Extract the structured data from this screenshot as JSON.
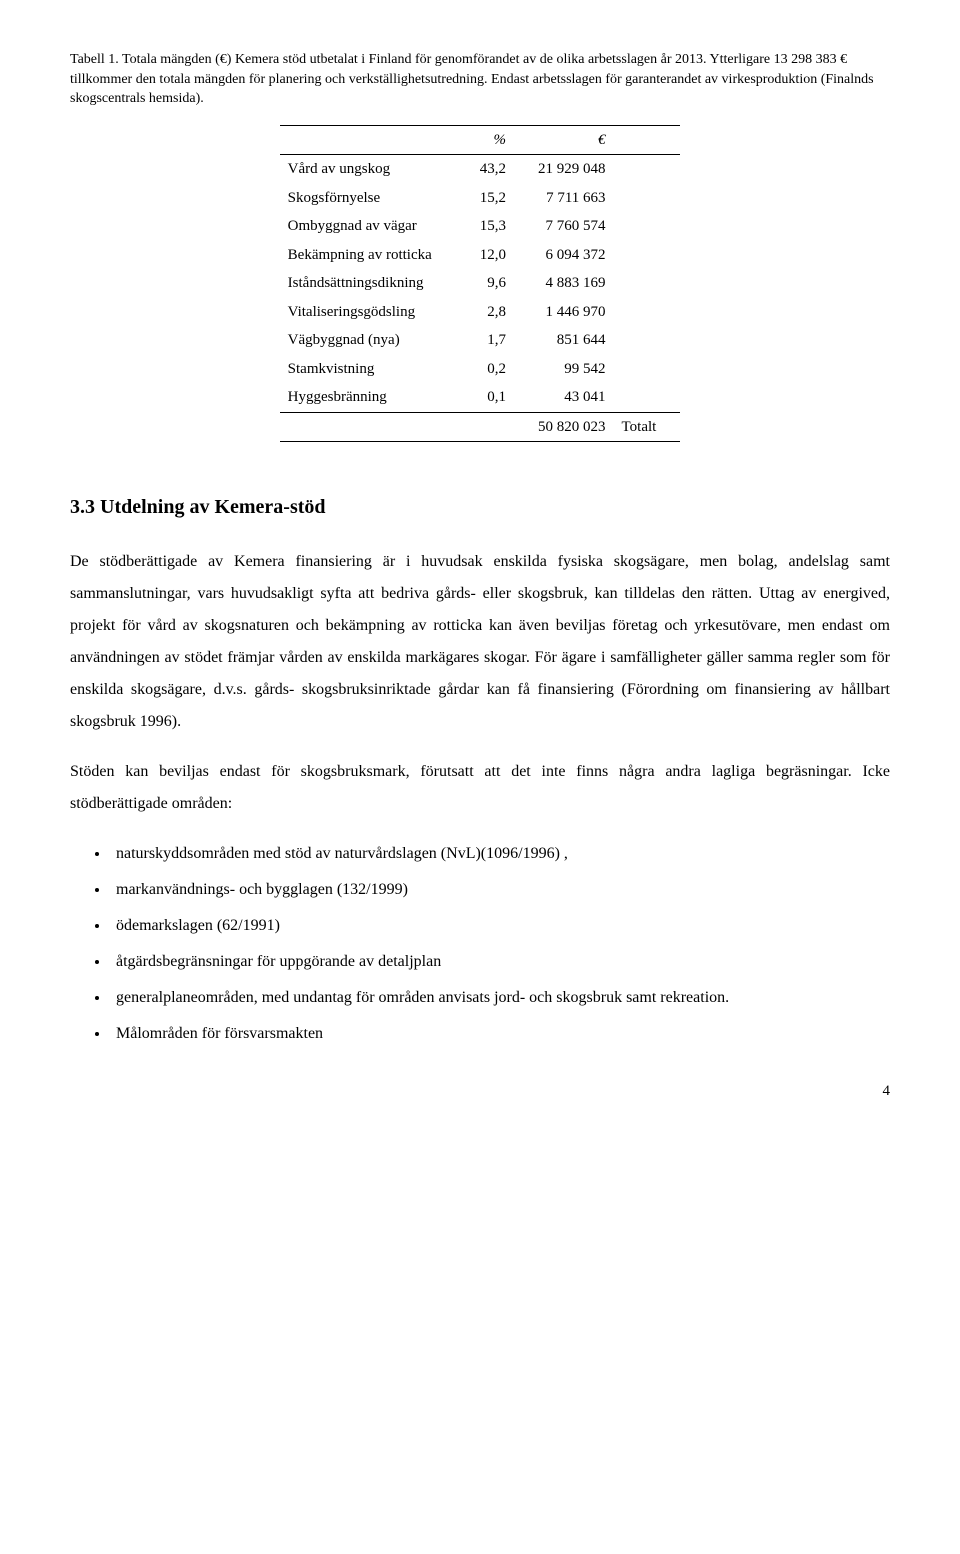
{
  "caption": "Tabell 1. Totala mängden (€) Kemera stöd utbetalat i Finland för genomförandet av de olika arbetsslagen år 2013. Ytterligare 13 298 383 € tillkommer den totala mängden för planering och verkställighetsutredning. Endast arbetsslagen för garanterandet av virkesproduktion (Finalnds skogscentrals hemsida).",
  "table": {
    "headers": [
      "",
      "%",
      "€"
    ],
    "rows": [
      {
        "label": "Vård av ungskog",
        "pct": "43,2",
        "eur": "21 929 048"
      },
      {
        "label": "Skogsförnyelse",
        "pct": "15,2",
        "eur": "7 711 663"
      },
      {
        "label": "Ombyggnad av vägar",
        "pct": "15,3",
        "eur": "7 760 574"
      },
      {
        "label": "Bekämpning av rotticka",
        "pct": "12,0",
        "eur": "6 094 372"
      },
      {
        "label": "Iståndsättningsdikning",
        "pct": "9,6",
        "eur": "4 883 169"
      },
      {
        "label": "Vitaliseringsgödsling",
        "pct": "2,8",
        "eur": "1 446 970"
      },
      {
        "label": "Vägbyggnad (nya)",
        "pct": "1,7",
        "eur": "851 644"
      },
      {
        "label": "Stamkvistning",
        "pct": "0,2",
        "eur": "99 542"
      },
      {
        "label": "Hyggesbränning",
        "pct": "0,1",
        "eur": "43 041"
      }
    ],
    "total": {
      "eur": "50 820 023",
      "label": "Totalt"
    }
  },
  "section_heading": "3.3  Utdelning av Kemera-stöd",
  "para1": "De stödberättigade av Kemera finansiering är i huvudsak enskilda fysiska skogsägare, men bolag, andelslag samt sammanslutningar, vars huvudsakligt syfta att bedriva gårds- eller skogsbruk, kan tilldelas den rätten. Uttag av energived, projekt för vård av skogsnaturen och bekämpning av rotticka kan även beviljas företag och yrkesutövare, men endast om användningen av stödet främjar vården av enskilda markägares skogar.  För ägare i samfälligheter gäller samma regler som för enskilda skogsägare, d.v.s. gårds- skogsbruksinriktade gårdar kan få finansiering (Förordning om finansiering av hållbart skogsbruk 1996).",
  "para2": "Stöden kan beviljas endast för skogsbruksmark, förutsatt att det inte finns några andra lagliga begräsningar. Icke stödberättigade områden:",
  "bullets": [
    "naturskyddsområden med stöd av naturvårdslagen (NvL)(1096/1996) ,",
    "markanvändnings- och bygglagen (132/1999)",
    "ödemarkslagen (62/1991)",
    "åtgärdsbegränsningar för uppgörande av detaljplan",
    "generalplaneområden, med undantag för områden anvisats jord- och skogsbruk samt rekreation.",
    "Målområden för försvarsmakten"
  ],
  "page_number": "4"
}
